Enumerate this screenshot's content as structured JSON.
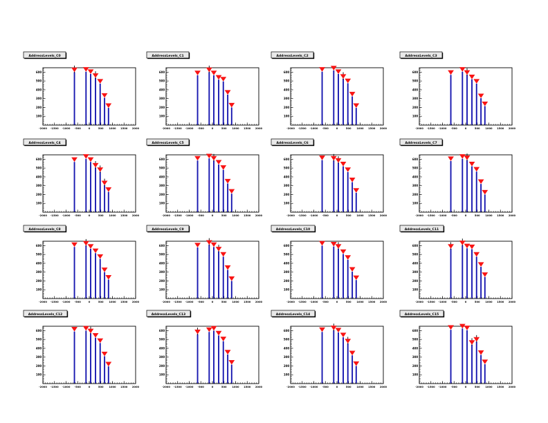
{
  "page": {
    "background": "#ffffff",
    "description": "ROOT canvas divided into a 4x4 grid of AddressLevels histograms"
  },
  "colors": {
    "spike": "#1717b0",
    "marker": "#f81414",
    "error_bar": "#000000",
    "frame_fill": "#ffffff",
    "frame_border": "#000000",
    "tick": "#000000",
    "label": "#000000",
    "title_bg": "#e9e9e9"
  },
  "chart_data": {
    "type": "bar",
    "subtype": "spike-grid-with-triangle-markers",
    "grid": [
      4,
      4
    ],
    "x_range": [
      -2000,
      2000
    ],
    "y_range": [
      0,
      650
    ],
    "x_ticks": [
      -2000,
      -1500,
      -1000,
      -500,
      0,
      500,
      1000,
      1500,
      2000
    ],
    "x_minor_step": 100,
    "y_ticks": [
      100,
      200,
      300,
      400,
      500,
      600
    ],
    "y_minor_step": 20,
    "xlabel": "",
    "ylabel": "",
    "legend": "none",
    "grid_lines": false,
    "marker_style": "inverted-red-triangle",
    "plots": [
      {
        "title": "AddressLevels_C0",
        "x": [
          -640,
          -140,
          60,
          270,
          470,
          660,
          830
        ],
        "y": [
          600,
          605,
          580,
          535,
          470,
          310,
          195
        ],
        "err_bars": [
          0,
          3
        ]
      },
      {
        "title": "AddressLevels_C1",
        "x": [
          -640,
          -140,
          60,
          270,
          470,
          660,
          830
        ],
        "y": [
          565,
          600,
          565,
          515,
          495,
          345,
          200
        ],
        "err_bars": [
          1
        ]
      },
      {
        "title": "AddressLevels_C2",
        "x": [
          -640,
          -140,
          60,
          270,
          470,
          660,
          830
        ],
        "y": [
          605,
          620,
          580,
          525,
          475,
          325,
          195
        ],
        "err_bars": [
          3
        ]
      },
      {
        "title": "AddressLevels_C3",
        "x": [
          -640,
          -140,
          60,
          270,
          470,
          660,
          830
        ],
        "y": [
          570,
          605,
          570,
          520,
          470,
          305,
          215
        ],
        "err_bars": [
          2
        ]
      },
      {
        "title": "AddressLevels_C4",
        "x": [
          -640,
          -140,
          60,
          270,
          470,
          660,
          830
        ],
        "y": [
          570,
          605,
          570,
          505,
          455,
          305,
          230
        ],
        "err_bars": [
          3,
          4,
          5
        ]
      },
      {
        "title": "AddressLevels_C5",
        "x": [
          -640,
          -140,
          60,
          270,
          470,
          660,
          830
        ],
        "y": [
          585,
          610,
          585,
          540,
          480,
          325,
          210
        ],
        "err_bars": [
          2
        ]
      },
      {
        "title": "AddressLevels_C6",
        "x": [
          -640,
          -140,
          60,
          270,
          470,
          660,
          830
        ],
        "y": [
          590,
          585,
          560,
          520,
          455,
          340,
          220
        ],
        "err_bars": [
          1,
          2
        ]
      },
      {
        "title": "AddressLevels_C7",
        "x": [
          -640,
          -140,
          60,
          270,
          470,
          660,
          830
        ],
        "y": [
          580,
          605,
          590,
          520,
          460,
          320,
          200
        ],
        "err_bars": [
          2
        ]
      },
      {
        "title": "AddressLevels_C8",
        "x": [
          -640,
          -140,
          60,
          270,
          470,
          660,
          830
        ],
        "y": [
          585,
          600,
          565,
          515,
          450,
          300,
          215
        ],
        "err_bars": [
          1
        ]
      },
      {
        "title": "AddressLevels_C9",
        "x": [
          -640,
          -140,
          60,
          270,
          470,
          660,
          830
        ],
        "y": [
          580,
          610,
          585,
          535,
          475,
          325,
          200
        ],
        "err_bars": [
          1,
          3
        ]
      },
      {
        "title": "AddressLevels_C10",
        "x": [
          -640,
          -140,
          60,
          270,
          470,
          660,
          830
        ],
        "y": [
          600,
          590,
          565,
          505,
          440,
          305,
          210
        ],
        "err_bars": [
          2
        ]
      },
      {
        "title": "AddressLevels_C11",
        "x": [
          -640,
          -140,
          60,
          270,
          470,
          660,
          830
        ],
        "y": [
          565,
          605,
          570,
          560,
          475,
          360,
          245
        ],
        "err_bars": [
          0,
          1
        ]
      },
      {
        "title": "AddressLevels_C12",
        "x": [
          -640,
          -140,
          60,
          270,
          470,
          660,
          830
        ],
        "y": [
          590,
          600,
          570,
          520,
          460,
          310,
          195
        ],
        "err_bars": [
          2
        ]
      },
      {
        "title": "AddressLevels_C13",
        "x": [
          -640,
          -140,
          60,
          270,
          470,
          660,
          830
        ],
        "y": [
          560,
          585,
          600,
          545,
          480,
          330,
          215
        ],
        "err_bars": [
          0
        ]
      },
      {
        "title": "AddressLevels_C14",
        "x": [
          -640,
          -140,
          60,
          270,
          470,
          660,
          830
        ],
        "y": [
          585,
          605,
          580,
          525,
          455,
          320,
          200
        ],
        "err_bars": [
          1,
          4
        ]
      },
      {
        "title": "AddressLevels_C15",
        "x": [
          -640,
          -140,
          60,
          270,
          470,
          660,
          830
        ],
        "y": [
          610,
          625,
          605,
          440,
          475,
          325,
          220
        ],
        "err_bars": [
          3,
          4
        ]
      }
    ]
  }
}
